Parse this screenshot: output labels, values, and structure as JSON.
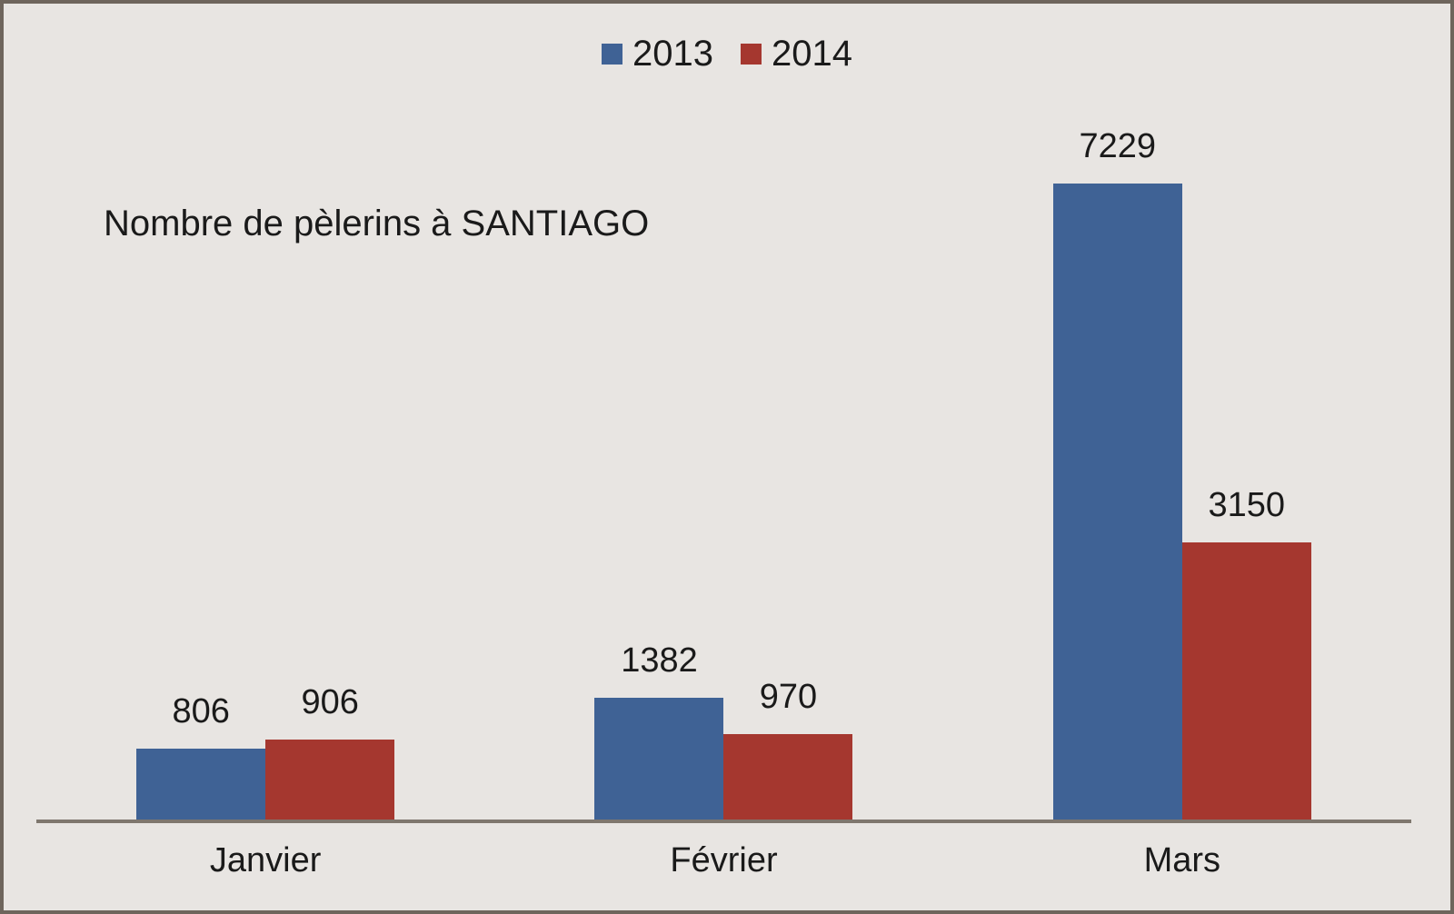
{
  "chart_data": {
    "type": "bar",
    "title": "Nombre de pèlerins à SANTIAGO",
    "categories": [
      "Janvier",
      "Février",
      "Mars"
    ],
    "series": [
      {
        "name": "2013",
        "color": "#3F6295",
        "values": [
          806,
          1382,
          7229
        ]
      },
      {
        "name": "2014",
        "color": "#A5372F",
        "values": [
          906,
          970,
          3150
        ]
      }
    ],
    "data_labels": true,
    "legend_position": "top",
    "grid": false,
    "y_axis_visible": false,
    "ylim": [
      0,
      7229
    ]
  },
  "style": {
    "background_color": "#E8E5E2",
    "frame_border_color": "#6E655C",
    "axis_line_color": "#7F776E",
    "text_color": "#1A1A1A"
  }
}
